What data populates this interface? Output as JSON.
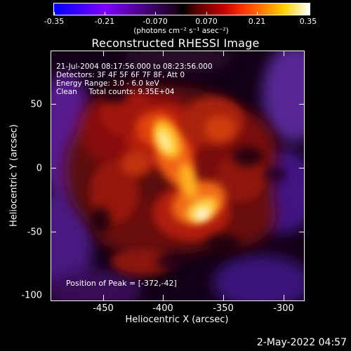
{
  "colorbar": {
    "ticks": [
      "-0.35",
      "-0.21",
      "-0.070",
      "0.070",
      "0.21",
      "0.35"
    ],
    "units": "(photons cm⁻² s⁻¹ asec⁻²)"
  },
  "title": "Reconstructed RHESSI Image",
  "info": {
    "time": "21-Jul-2004 08:17:56.000 to 08:23:56.000",
    "detectors": "Detectors: 3F 4F 5F 6F 7F 8F, Att 0",
    "energy": "Energy Range: 3.0 - 6.0 keV",
    "clean": "Clean     Total counts: 9.35E+04"
  },
  "peak": "Position of Peak = [-372,-42]",
  "x_axis": {
    "label": "Heliocentric X (arcsec)",
    "ticks": [
      "-450",
      "-400",
      "-350",
      "-300"
    ]
  },
  "y_axis": {
    "label": "Heliocentric Y (arcsec)",
    "ticks": [
      "50",
      "0",
      "-50",
      "-100"
    ]
  },
  "footer": "2-May-2022 04:57"
}
